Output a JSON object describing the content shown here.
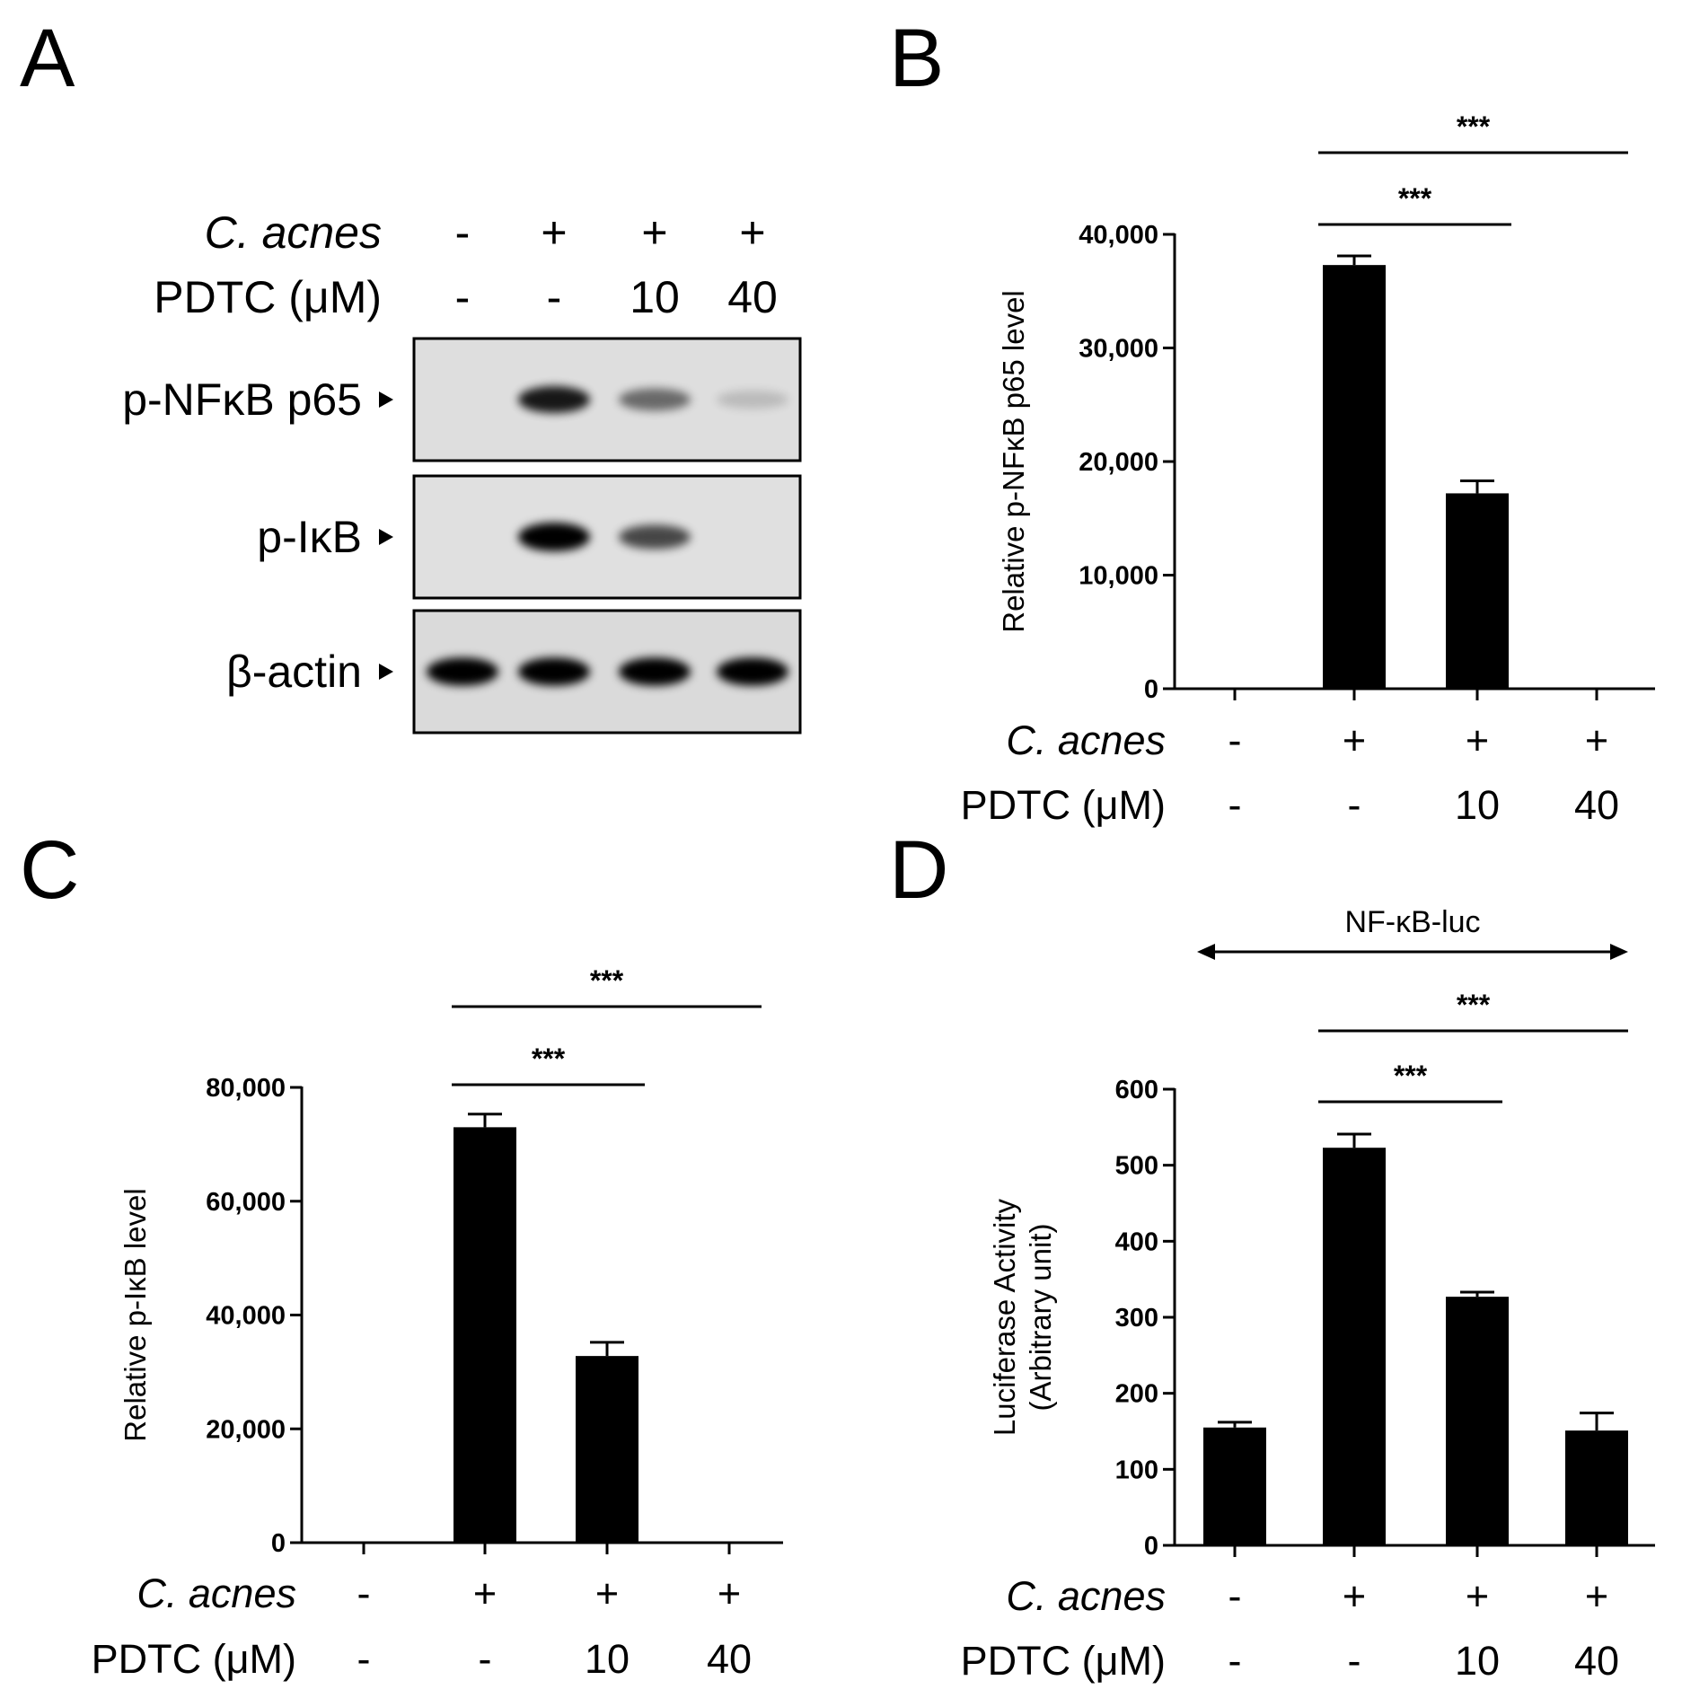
{
  "panel_labels": [
    "A",
    "B",
    "C",
    "D"
  ],
  "western_blot": {
    "conditions": {
      "c_acnes": {
        "label": "C. acnes",
        "values": [
          "-",
          "+",
          "+",
          "+"
        ]
      },
      "pdtc": {
        "label": "PDTC (μM)",
        "values": [
          "-",
          "-",
          "10",
          "40"
        ]
      }
    },
    "blots": [
      {
        "label": "p-NFκB p65",
        "band_intensity": [
          0,
          0.85,
          0.5,
          0.15
        ]
      },
      {
        "label": "p-IκB",
        "band_intensity": [
          0,
          1.0,
          0.65,
          0
        ]
      },
      {
        "label": "β-actin",
        "band_intensity": [
          0.95,
          0.95,
          0.95,
          0.95
        ]
      }
    ]
  },
  "chart_data": [
    {
      "panel": "B",
      "type": "bar",
      "ylabel": "Relative p-NFκB p65 level",
      "ylim": [
        0,
        40000
      ],
      "yticks": [
        0,
        10000,
        20000,
        30000,
        40000
      ],
      "ytick_labels": [
        "0",
        "10,000",
        "20,000",
        "30,000",
        "40,000"
      ],
      "values": [
        0,
        37300,
        17200,
        0
      ],
      "errors": [
        0,
        800,
        1100,
        0
      ],
      "conditions": {
        "c_acnes": {
          "label": "C. acnes",
          "values": [
            "-",
            "+",
            "+",
            "+"
          ]
        },
        "pdtc": {
          "label": "PDTC (μM)",
          "values": [
            "-",
            "-",
            "10",
            "40"
          ]
        }
      },
      "significance": [
        {
          "from": 1,
          "to": 2,
          "label": "***"
        },
        {
          "from": 1,
          "to": 3,
          "label": "***"
        }
      ]
    },
    {
      "panel": "C",
      "type": "bar",
      "ylabel": "Relative p-IκB level",
      "ylim": [
        0,
        80000
      ],
      "yticks": [
        0,
        20000,
        40000,
        60000,
        80000
      ],
      "ytick_labels": [
        "0",
        "20,000",
        "40,000",
        "60,000",
        "80,000"
      ],
      "values": [
        0,
        73000,
        32800,
        0
      ],
      "errors": [
        0,
        2300,
        2400,
        0
      ],
      "conditions": {
        "c_acnes": {
          "label": "C. acnes",
          "values": [
            "-",
            "+",
            "+",
            "+"
          ]
        },
        "pdtc": {
          "label": "PDTC (μM)",
          "values": [
            "-",
            "-",
            "10",
            "40"
          ]
        }
      },
      "significance": [
        {
          "from": 1,
          "to": 2,
          "label": "***"
        },
        {
          "from": 1,
          "to": 3,
          "label": "***"
        }
      ]
    },
    {
      "panel": "D",
      "type": "bar",
      "ylabel": [
        "Luciferase Activity",
        "(Arbitrary unit)"
      ],
      "ylim": [
        0,
        600
      ],
      "yticks": [
        0,
        100,
        200,
        300,
        400,
        500,
        600
      ],
      "ytick_labels": [
        "0",
        "100",
        "200",
        "300",
        "400",
        "500",
        "600"
      ],
      "values": [
        155,
        523,
        327,
        151
      ],
      "errors": [
        7,
        18,
        6,
        23
      ],
      "header": "NF-κB-luc",
      "conditions": {
        "c_acnes": {
          "label": "C. acnes",
          "values": [
            "-",
            "+",
            "+",
            "+"
          ]
        },
        "pdtc": {
          "label": "PDTC (μM)",
          "values": [
            "-",
            "-",
            "10",
            "40"
          ]
        }
      },
      "significance": [
        {
          "from": 1,
          "to": 2,
          "label": "***"
        },
        {
          "from": 1,
          "to": 3,
          "label": "***"
        }
      ]
    }
  ]
}
